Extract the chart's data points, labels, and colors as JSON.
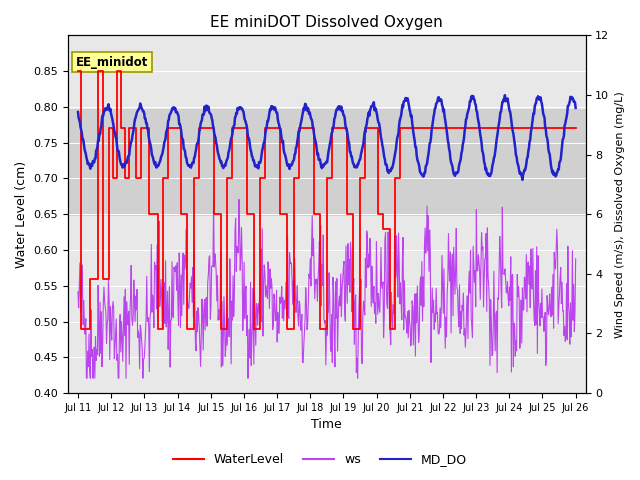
{
  "title": "EE miniDOT Dissolved Oxygen",
  "xlabel": "Time",
  "ylabel_left": "Water Level (cm)",
  "ylabel_right": "Wind Speed (m/s), Dissolved Oxygen (mg/L)",
  "annotation": "EE_minidot",
  "left_ylim": [
    0.4,
    0.9
  ],
  "right_ylim": [
    0,
    12
  ],
  "left_yticks": [
    0.4,
    0.45,
    0.5,
    0.55,
    0.6,
    0.65,
    0.7,
    0.75,
    0.8,
    0.85
  ],
  "right_yticks": [
    0,
    2,
    4,
    6,
    8,
    10,
    12
  ],
  "xtick_labels": [
    "Jul 11",
    "Jul 12",
    "Jul 13",
    "Jul 14",
    "Jul 15",
    "Jul 16",
    "Jul 17",
    "Jul 18",
    "Jul 19",
    "Jul 20",
    "Jul 21",
    "Jul 22",
    "Jul 23",
    "Jul 24",
    "Jul 25",
    "Jul 26"
  ],
  "waterlevel_color": "#FF0000",
  "ws_color": "#BB44EE",
  "mddo_color": "#2222CC",
  "legend_labels": [
    "WaterLevel",
    "ws",
    "MD_DO"
  ],
  "bg_color": "#E8E8E8",
  "fig_bg_color": "#FFFFFF",
  "band_color": "#D0D0D0",
  "grid_color": "#FFFFFF"
}
